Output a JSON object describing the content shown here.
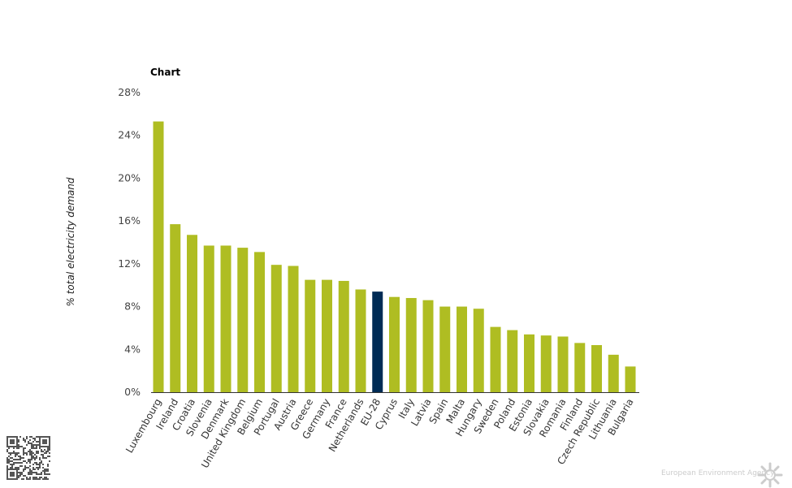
{
  "chart_data": {
    "type": "bar",
    "title": "Chart",
    "xlabel": "",
    "ylabel": "% total electricity demand",
    "ylim": [
      0,
      28
    ],
    "yticks": [
      "0%",
      "4%",
      "8%",
      "12%",
      "16%",
      "20%",
      "24%",
      "28%"
    ],
    "ytick_values": [
      0,
      4,
      8,
      12,
      16,
      20,
      24,
      28
    ],
    "grid": false,
    "categories": [
      "Luxembourg",
      "Ireland",
      "Croatia",
      "Slovenia",
      "Denmark",
      "United Kingdom",
      "Belgium",
      "Portugal",
      "Austria",
      "Greece",
      "Germany",
      "France",
      "Netherlands",
      "EU-28",
      "Cyprus",
      "Italy",
      "Latvia",
      "Spain",
      "Malta",
      "Hungary",
      "Sweden",
      "Poland",
      "Estonia",
      "Slovakia",
      "Romania",
      "Finland",
      "Czech Republic",
      "Lithuania",
      "Bulgaria"
    ],
    "values": [
      25.3,
      15.7,
      14.7,
      13.7,
      13.7,
      13.5,
      13.1,
      11.9,
      11.8,
      10.5,
      10.5,
      10.4,
      9.6,
      9.4,
      8.9,
      8.8,
      8.6,
      8.0,
      8.0,
      7.8,
      6.1,
      5.8,
      5.4,
      5.3,
      5.2,
      4.6,
      4.4,
      3.5,
      2.4
    ],
    "highlight": "EU-28",
    "colors": {
      "default": "#afbd22",
      "highlight": "#002b55"
    }
  },
  "footer": {
    "agency": "European Environment Agency"
  }
}
